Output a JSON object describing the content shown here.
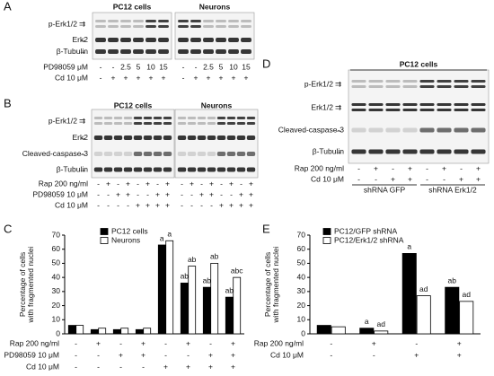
{
  "panels": {
    "A": {
      "label": "A",
      "groups": [
        "PC12 cells",
        "Neurons"
      ],
      "blots": [
        "p-Erk1/2",
        "Erk2",
        "β-Tubulin"
      ],
      "conditions": [
        {
          "name": "PD98059 μM",
          "lanes": [
            "-",
            "-",
            "2.5",
            "5",
            "10",
            "15",
            "-",
            "-",
            "2.5",
            "5",
            "10",
            "15"
          ]
        },
        {
          "name": "Cd 10 μM",
          "lanes": [
            "-",
            "+",
            "+",
            "+",
            "+",
            "+",
            "-",
            "+",
            "+",
            "+",
            "+",
            "+"
          ]
        }
      ]
    },
    "B": {
      "label": "B",
      "groups": [
        "PC12 cells",
        "Neurons"
      ],
      "blots": [
        "p-Erk1/2",
        "Erk2",
        "Cleaved-caspase-3",
        "β-Tubulin"
      ],
      "conditions": [
        {
          "name": "Rap 200 ng/ml",
          "lanes": [
            "-",
            "+",
            "-",
            "+",
            "-",
            "+",
            "-",
            "+",
            "-",
            "+",
            "-",
            "+",
            "-",
            "+",
            "-",
            "+"
          ]
        },
        {
          "name": "PD98059 10 μM",
          "lanes": [
            "-",
            "-",
            "+",
            "+",
            "-",
            "-",
            "+",
            "+",
            "-",
            "-",
            "+",
            "+",
            "-",
            "-",
            "+",
            "+"
          ]
        },
        {
          "name": "Cd 10 μM",
          "lanes": [
            "-",
            "-",
            "-",
            "-",
            "+",
            "+",
            "+",
            "+",
            "-",
            "-",
            "-",
            "-",
            "+",
            "+",
            "+",
            "+"
          ]
        }
      ]
    },
    "D": {
      "label": "D",
      "header": "PC12 cells",
      "groups": [
        "shRNA GFP",
        "shRNA Erk1/2"
      ],
      "blots": [
        "p-Erk1/2",
        "Erk1/2",
        "Cleaved-caspase-3",
        "β-Tubulin"
      ],
      "conditions": [
        {
          "name": "Rap 200 ng/ml",
          "lanes": [
            "-",
            "+",
            "-",
            "+",
            "-",
            "+",
            "-",
            "+"
          ]
        },
        {
          "name": "Cd 10 μM",
          "lanes": [
            "-",
            "-",
            "+",
            "+",
            "-",
            "-",
            "+",
            "+"
          ]
        }
      ]
    }
  },
  "chart_data": [
    {
      "type": "bar",
      "label": "C",
      "ylabel": "Percentage of cells\nwith fragmented nuclei",
      "ylim": [
        0,
        70
      ],
      "yticks": [
        0,
        10,
        20,
        30,
        40,
        50,
        60,
        70
      ],
      "series": [
        {
          "name": "PC12 cells",
          "color": "#000000",
          "values": [
            6,
            3,
            3,
            3,
            63,
            36,
            33,
            26
          ],
          "annotations": [
            null,
            null,
            null,
            null,
            "a",
            "ab",
            "ab",
            "ab"
          ]
        },
        {
          "name": "Neurons",
          "color": "#ffffff",
          "values": [
            6,
            4,
            4,
            4,
            66,
            48,
            50,
            40
          ],
          "annotations": [
            null,
            null,
            null,
            null,
            "a",
            "ab",
            "ab",
            "abc"
          ]
        }
      ],
      "conditions": [
        {
          "name": "Rap 200 ng/ml",
          "lanes": [
            "-",
            "+",
            "-",
            "+",
            "-",
            "+",
            "-",
            "+"
          ]
        },
        {
          "name": "PD98059 10 μM",
          "lanes": [
            "-",
            "-",
            "+",
            "+",
            "-",
            "-",
            "+",
            "+"
          ]
        },
        {
          "name": "Cd 10 μM",
          "lanes": [
            "-",
            "-",
            "-",
            "-",
            "+",
            "+",
            "+",
            "+"
          ]
        }
      ]
    },
    {
      "type": "bar",
      "label": "E",
      "ylabel": "Percentage of cells\nwith fragmented nuclei",
      "ylim": [
        0,
        70
      ],
      "yticks": [
        0,
        10,
        20,
        30,
        40,
        50,
        60,
        70
      ],
      "series": [
        {
          "name": "PC12/GFP shRNA",
          "color": "#000000",
          "values": [
            6,
            4,
            57,
            33
          ],
          "annotations": [
            null,
            "a",
            "a",
            "ab"
          ]
        },
        {
          "name": "PC12/Erk1/2 shRNA",
          "color": "#ffffff",
          "values": [
            5,
            2,
            27,
            23
          ],
          "annotations": [
            null,
            "ad",
            "ad",
            "ad"
          ]
        }
      ],
      "conditions": [
        {
          "name": "Rap 200 ng/ml",
          "lanes": [
            "-",
            "+",
            "-",
            "+"
          ]
        },
        {
          "name": "Cd 10 μM",
          "lanes": [
            "-",
            "-",
            "+",
            "+"
          ]
        }
      ]
    }
  ]
}
